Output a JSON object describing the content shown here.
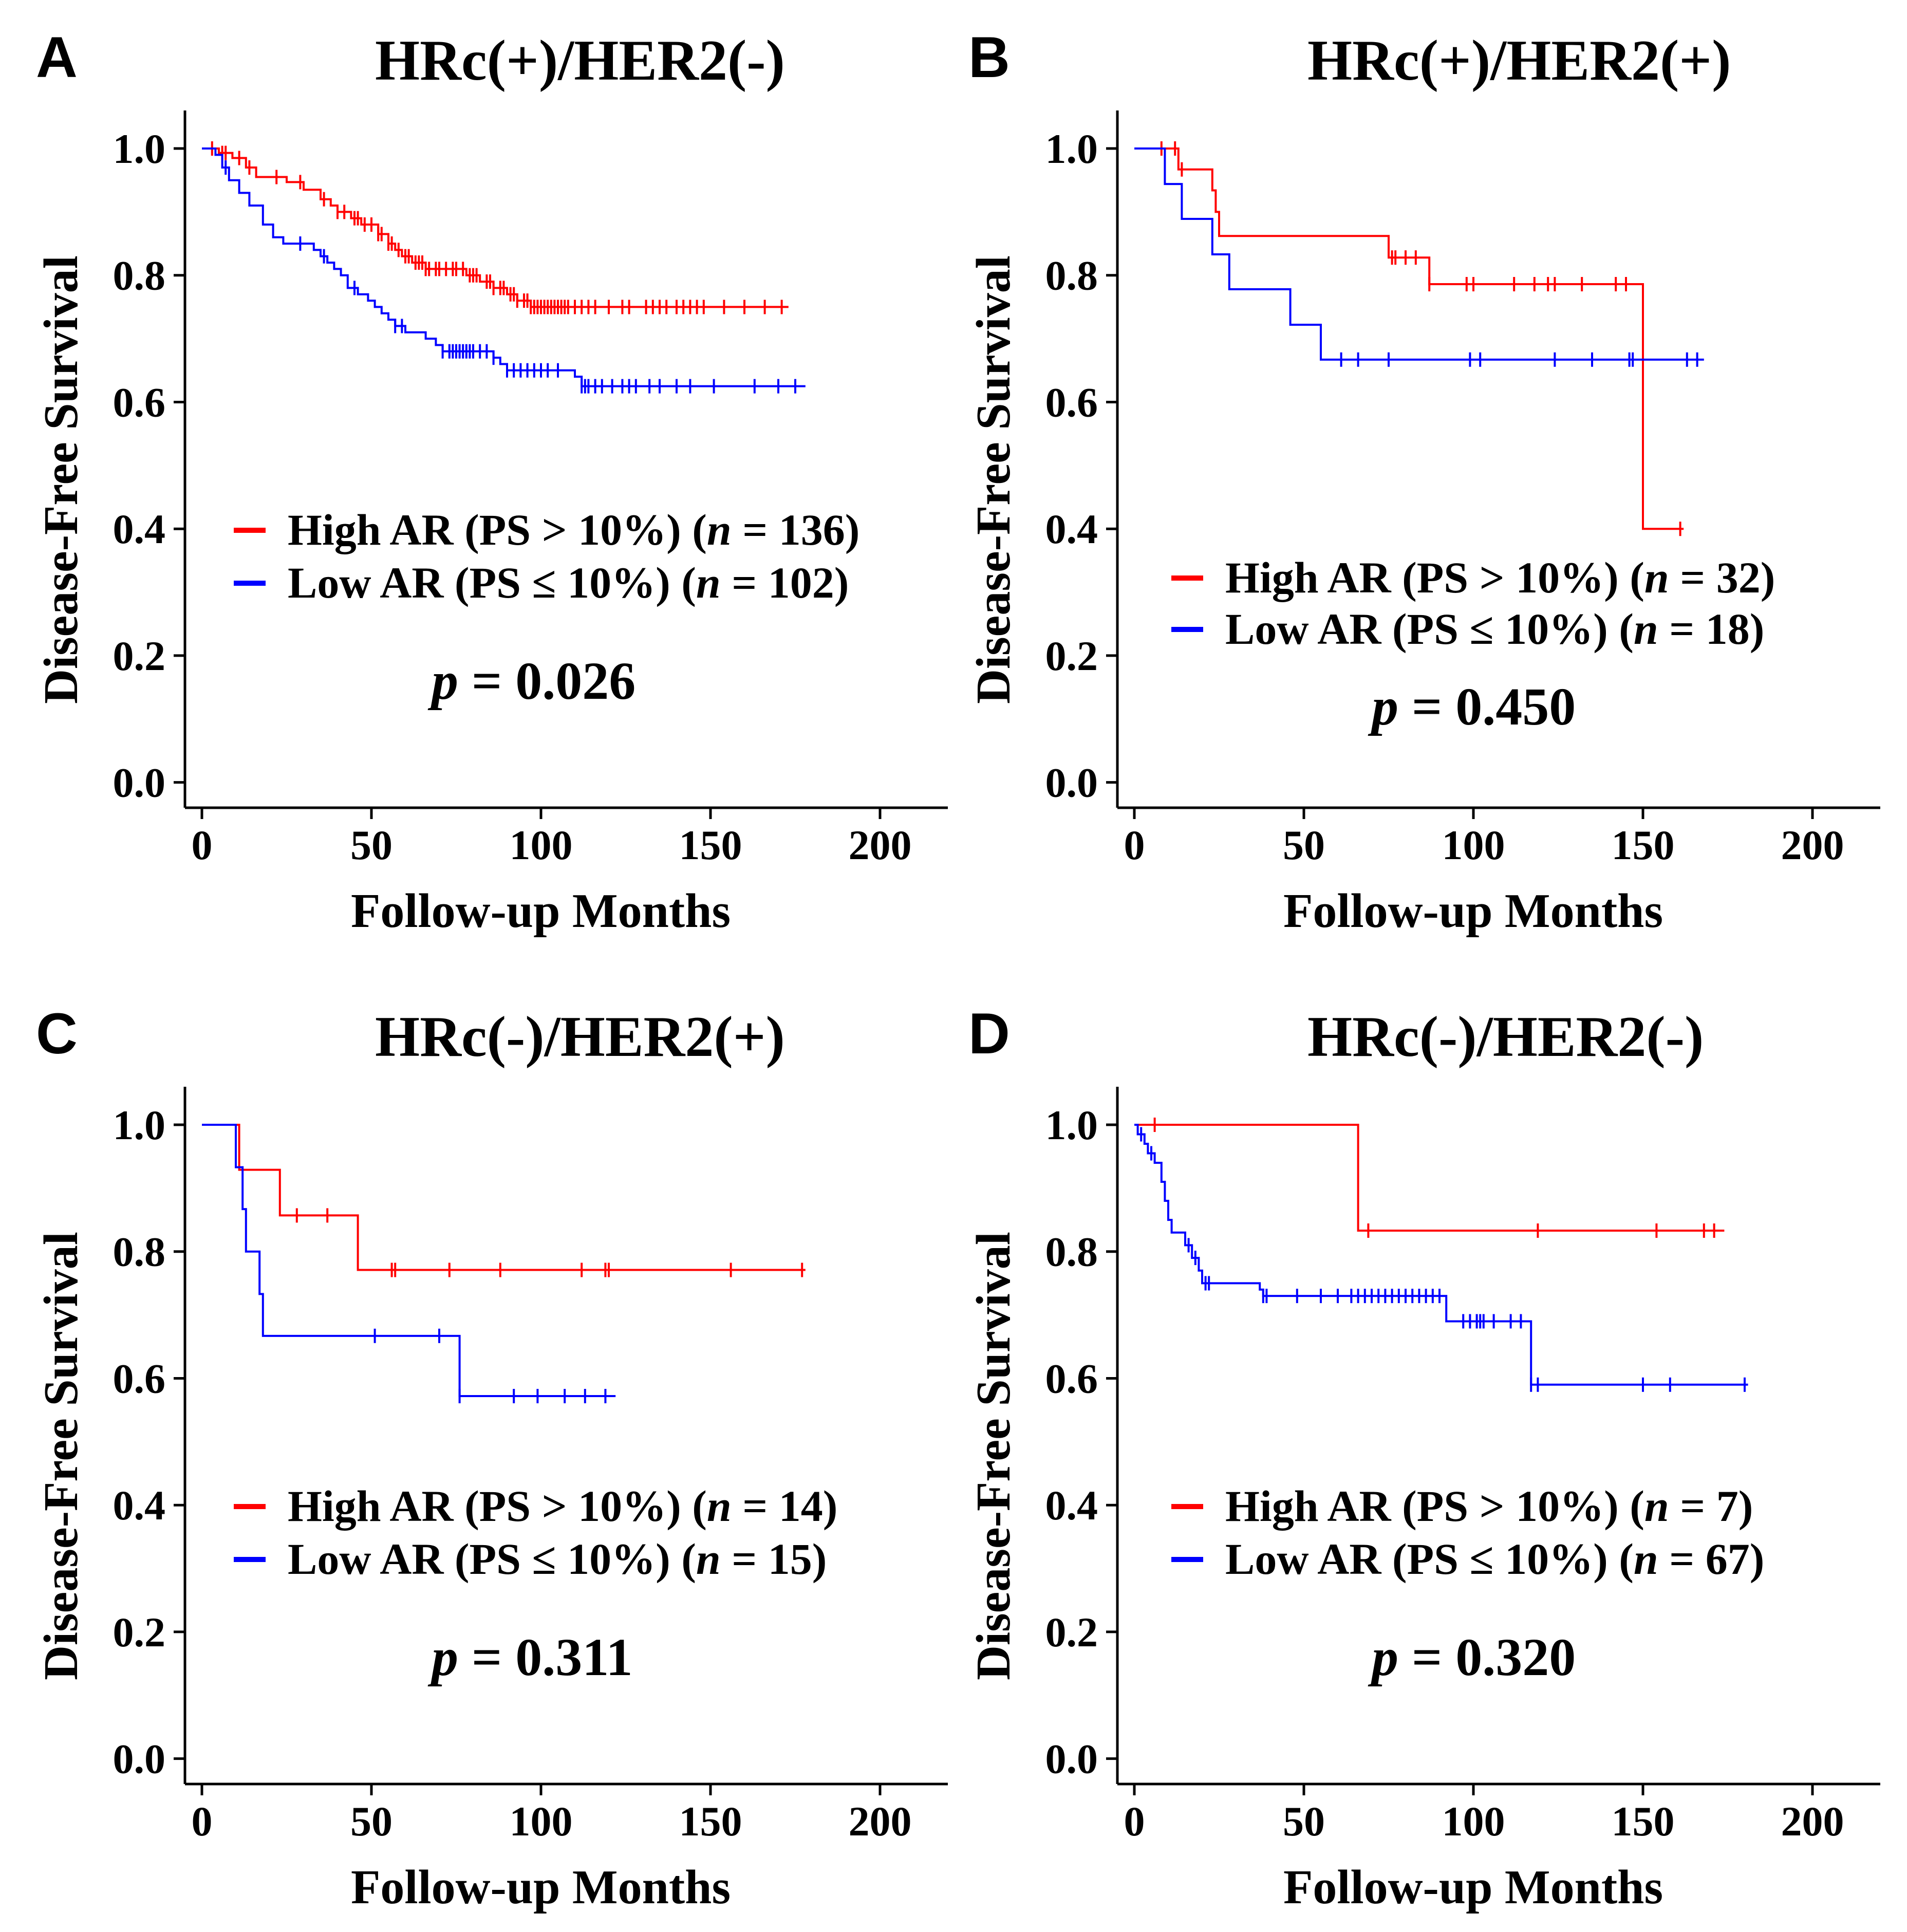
{
  "figure": {
    "style": {
      "high_color": "#ff0000",
      "low_color": "#0000ff",
      "axis_color": "#000000"
    },
    "charts_meta": [
      {
        "letter": "A",
        "title": "HRc(+)/HER2(-)",
        "legend": {
          "high": {
            "text": "High AR (PS > 10%)",
            "n": "136"
          },
          "low": {
            "text": "Low AR (PS ≤ 10%)",
            "n": "102"
          }
        },
        "p_value": "0.026"
      },
      {
        "letter": "B",
        "title": "HRc(+)/HER2(+)",
        "legend": {
          "high": {
            "text": "High AR (PS > 10%)",
            "n": "32"
          },
          "low": {
            "text": "Low AR (PS ≤ 10%)",
            "n": "18"
          }
        },
        "p_value": "0.450"
      },
      {
        "letter": "C",
        "title": "HRc(-)/HER2(+)",
        "legend": {
          "high": {
            "text": "High AR (PS > 10%)",
            "n": "14"
          },
          "low": {
            "text": "Low AR (PS ≤ 10%)",
            "n": "15"
          }
        },
        "p_value": "0.311"
      },
      {
        "letter": "D",
        "title": "HRc(-)/HER2(-)",
        "legend": {
          "high": {
            "text": "High AR (PS > 10%)",
            "n": "7"
          },
          "low": {
            "text": "Low AR (PS ≤ 10%)",
            "n": "67"
          }
        },
        "p_value": "0.320"
      }
    ]
  },
  "chart_data": [
    {
      "type": "line",
      "subtype": "kaplan-meier step",
      "title": "HRc(+)/HER2(-)",
      "xlabel": "Follow-up Months",
      "ylabel": "Disease-Free Survival",
      "xlim": [
        -5,
        220
      ],
      "ylim": [
        -0.04,
        1.06
      ],
      "xticks": [
        0,
        50,
        100,
        150,
        200
      ],
      "yticks": [
        0.0,
        0.2,
        0.4,
        0.6,
        0.8,
        1.0
      ],
      "legend_position": "lower-center",
      "series": [
        {
          "name": "High AR (PS > 10%)",
          "n": 136,
          "color": "#ff0000",
          "steps": [
            [
              0,
              1.0
            ],
            [
              5,
              0.993
            ],
            [
              9,
              0.985
            ],
            [
              13,
              0.97
            ],
            [
              16,
              0.955
            ],
            [
              25,
              0.947
            ],
            [
              30,
              0.935
            ],
            [
              35,
              0.92
            ],
            [
              38,
              0.91
            ],
            [
              40,
              0.9
            ],
            [
              44,
              0.89
            ],
            [
              47,
              0.88
            ],
            [
              52,
              0.865
            ],
            [
              55,
              0.85
            ],
            [
              57,
              0.84
            ],
            [
              59,
              0.83
            ],
            [
              62,
              0.82
            ],
            [
              66,
              0.81
            ],
            [
              78,
              0.8
            ],
            [
              82,
              0.79
            ],
            [
              86,
              0.78
            ],
            [
              90,
              0.77
            ],
            [
              93,
              0.76
            ],
            [
              97,
              0.75
            ]
          ],
          "end": 173,
          "censors": [
            3,
            6,
            7,
            11,
            14,
            22,
            29,
            36,
            40,
            42,
            45,
            46,
            48,
            50,
            52,
            53,
            55,
            56,
            58,
            60,
            61,
            63,
            64,
            65,
            66,
            67,
            69,
            70,
            72,
            74,
            75,
            77,
            79,
            80,
            81,
            84,
            85,
            86,
            88,
            89,
            91,
            92,
            93,
            95,
            96,
            97,
            98,
            99,
            100,
            101,
            102,
            103,
            104,
            105,
            106,
            107,
            108,
            110,
            112,
            114,
            116,
            120,
            124,
            126,
            131,
            133,
            135,
            137,
            140,
            142,
            144,
            146,
            148,
            154,
            160,
            166,
            171
          ]
        },
        {
          "name": "Low AR (PS ≤ 10%)",
          "n": 102,
          "color": "#0000ff",
          "steps": [
            [
              0,
              1.0
            ],
            [
              4,
              0.99
            ],
            [
              6,
              0.97
            ],
            [
              8,
              0.95
            ],
            [
              11,
              0.93
            ],
            [
              14,
              0.91
            ],
            [
              18,
              0.88
            ],
            [
              21,
              0.86
            ],
            [
              24,
              0.85
            ],
            [
              33,
              0.84
            ],
            [
              35,
              0.83
            ],
            [
              37,
              0.82
            ],
            [
              39,
              0.81
            ],
            [
              41,
              0.8
            ],
            [
              43,
              0.78
            ],
            [
              46,
              0.77
            ],
            [
              49,
              0.76
            ],
            [
              51,
              0.75
            ],
            [
              53,
              0.74
            ],
            [
              55,
              0.73
            ],
            [
              57,
              0.72
            ],
            [
              60,
              0.71
            ],
            [
              66,
              0.7
            ],
            [
              69,
              0.69
            ],
            [
              71,
              0.68
            ],
            [
              86,
              0.67
            ],
            [
              88,
              0.66
            ],
            [
              90,
              0.65
            ],
            [
              110,
              0.64
            ],
            [
              112,
              0.625
            ]
          ],
          "end": 178,
          "censors": [
            7,
            29,
            36,
            45,
            57,
            59,
            71,
            73,
            74,
            75,
            76,
            77,
            78,
            79,
            80,
            82,
            84,
            86,
            90,
            92,
            94,
            96,
            98,
            100,
            102,
            105,
            112,
            113,
            114,
            116,
            118,
            121,
            124,
            126,
            128,
            132,
            135,
            140,
            144,
            151,
            163,
            170,
            175
          ]
        }
      ]
    },
    {
      "type": "line",
      "subtype": "kaplan-meier step",
      "title": "HRc(+)/HER2(+)",
      "xlabel": "Follow-up Months",
      "ylabel": "Disease-Free Survival",
      "xlim": [
        -5,
        220
      ],
      "ylim": [
        -0.04,
        1.06
      ],
      "xticks": [
        0,
        50,
        100,
        150,
        200
      ],
      "yticks": [
        0.0,
        0.2,
        0.4,
        0.6,
        0.8,
        1.0
      ],
      "legend_position": "lower-center",
      "series": [
        {
          "name": "High AR (PS > 10%)",
          "n": 32,
          "color": "#ff0000",
          "steps": [
            [
              0,
              1.0
            ],
            [
              13,
              0.967
            ],
            [
              23,
              0.934
            ],
            [
              24,
              0.9
            ],
            [
              25,
              0.862
            ],
            [
              75,
              0.828
            ],
            [
              87,
              0.786
            ],
            [
              150,
              0.4
            ]
          ],
          "end": 162,
          "censors": [
            8,
            12,
            14,
            76,
            77,
            80,
            83,
            87,
            98,
            100,
            112,
            118,
            122,
            124,
            132,
            142,
            145,
            161
          ]
        },
        {
          "name": "Low AR (PS ≤ 10%)",
          "n": 18,
          "color": "#0000ff",
          "steps": [
            [
              0,
              1.0
            ],
            [
              9,
              0.944
            ],
            [
              14,
              0.889
            ],
            [
              23,
              0.833
            ],
            [
              28,
              0.778
            ],
            [
              46,
              0.722
            ],
            [
              55,
              0.667
            ]
          ],
          "end": 168,
          "censors": [
            61,
            66,
            75,
            99,
            102,
            124,
            135,
            146,
            147,
            163,
            166
          ]
        }
      ]
    },
    {
      "type": "line",
      "subtype": "kaplan-meier step",
      "title": "HRc(-)/HER2(+)",
      "xlabel": "Follow-up Months",
      "ylabel": "Disease-Free Survival",
      "xlim": [
        -5,
        220
      ],
      "ylim": [
        -0.04,
        1.06
      ],
      "xticks": [
        0,
        50,
        100,
        150,
        200
      ],
      "yticks": [
        0.0,
        0.2,
        0.4,
        0.6,
        0.8,
        1.0
      ],
      "legend_position": "lower-center",
      "series": [
        {
          "name": "High AR (PS > 10%)",
          "n": 14,
          "color": "#ff0000",
          "steps": [
            [
              0,
              1.0
            ],
            [
              11,
              0.929
            ],
            [
              23,
              0.857
            ],
            [
              46,
              0.771
            ]
          ],
          "end": 178,
          "censors": [
            28,
            37,
            56,
            57,
            73,
            88,
            112,
            119,
            120,
            156,
            177
          ]
        },
        {
          "name": "Low AR (PS ≤ 10%)",
          "n": 15,
          "color": "#0000ff",
          "steps": [
            [
              0,
              1.0
            ],
            [
              10,
              0.933
            ],
            [
              12,
              0.867
            ],
            [
              13,
              0.8
            ],
            [
              17,
              0.733
            ],
            [
              18,
              0.667
            ],
            [
              76,
              0.572
            ]
          ],
          "end": 122,
          "censors": [
            51,
            70,
            76,
            92,
            99,
            107,
            113,
            119
          ]
        }
      ]
    },
    {
      "type": "line",
      "subtype": "kaplan-meier step",
      "title": "HRc(-)/HER2(-)",
      "xlabel": "Follow-up Months",
      "ylabel": "Disease-Free Survival",
      "xlim": [
        -5,
        220
      ],
      "ylim": [
        -0.04,
        1.06
      ],
      "xticks": [
        0,
        50,
        100,
        150,
        200
      ],
      "yticks": [
        0.0,
        0.2,
        0.4,
        0.6,
        0.8,
        1.0
      ],
      "legend_position": "lower-center",
      "series": [
        {
          "name": "High AR (PS > 10%)",
          "n": 7,
          "color": "#ff0000",
          "steps": [
            [
              0,
              1.0
            ],
            [
              66,
              0.833
            ]
          ],
          "end": 174,
          "censors": [
            6,
            69,
            119,
            154,
            168,
            171
          ]
        },
        {
          "name": "Low AR (PS ≤ 10%)",
          "n": 67,
          "color": "#0000ff",
          "steps": [
            [
              0,
              1.0
            ],
            [
              1,
              0.985
            ],
            [
              3,
              0.97
            ],
            [
              4,
              0.955
            ],
            [
              6,
              0.94
            ],
            [
              8,
              0.91
            ],
            [
              9,
              0.88
            ],
            [
              10,
              0.85
            ],
            [
              11,
              0.83
            ],
            [
              15,
              0.81
            ],
            [
              17,
              0.79
            ],
            [
              19,
              0.77
            ],
            [
              20,
              0.75
            ],
            [
              37,
              0.74
            ],
            [
              38,
              0.73
            ],
            [
              92,
              0.69
            ],
            [
              117,
              0.59
            ]
          ],
          "end": 181,
          "censors": [
            2,
            5,
            16,
            18,
            21,
            22,
            38,
            39,
            48,
            55,
            60,
            64,
            66,
            68,
            70,
            72,
            74,
            76,
            78,
            80,
            82,
            84,
            86,
            88,
            90,
            97,
            99,
            101,
            102,
            103,
            106,
            111,
            114,
            117,
            119,
            150,
            158,
            180
          ]
        }
      ]
    }
  ]
}
